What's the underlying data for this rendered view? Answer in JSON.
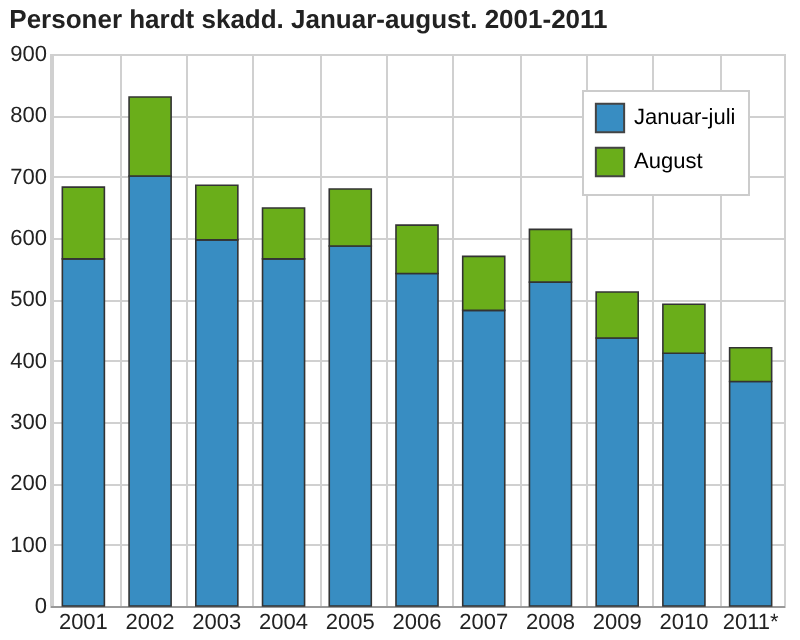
{
  "chart_data": {
    "type": "bar",
    "title": "Personer hardt skadd. Januar-august. 2001-2011",
    "categories": [
      "2001",
      "2002",
      "2003",
      "2004",
      "2005",
      "2006",
      "2007",
      "2008",
      "2009",
      "2010",
      "2011*"
    ],
    "stacked": true,
    "series": [
      {
        "name": "Januar-juli",
        "color": "#388dc2",
        "values": [
          566,
          701,
          597,
          566,
          587,
          542,
          482,
          528,
          437,
          412,
          366
        ]
      },
      {
        "name": "August",
        "color": "#6aae1a",
        "values": [
          117,
          129,
          89,
          83,
          93,
          79,
          88,
          86,
          75,
          80,
          55
        ]
      }
    ],
    "ylim": [
      0,
      900
    ],
    "yticks": [
      0,
      100,
      200,
      300,
      400,
      500,
      600,
      700,
      800,
      900
    ],
    "grid": true,
    "legend": "top right"
  }
}
